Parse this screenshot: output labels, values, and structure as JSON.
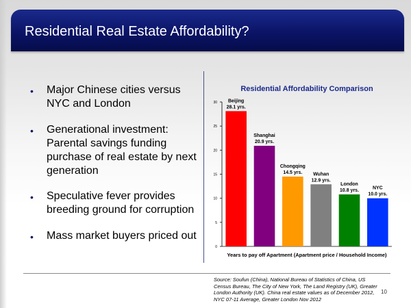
{
  "slide": {
    "title": "Residential Real Estate Affordability?",
    "bullets": [
      "Major Chinese cities versus NYC and London",
      "Generational investment: Parental savings funding purchase of real estate by next generation",
      "Speculative fever provides breeding ground for corruption",
      "Mass market buyers priced out"
    ],
    "bullet_glyph": "•",
    "source": "Source: Soufun (China), National Bureau of Statistics of China, US Census Bureau, The City of New York, The Land Registry (UK), Greater London Authority (UK). China real estate values as of December 2012, NYC 07-11 Average, Greater London Nov 2012",
    "page_number": "10"
  },
  "colors": {
    "header_navy": "#0b1466",
    "chart_title": "#1a2a8c"
  },
  "chart_data": {
    "type": "bar",
    "title": "Residential Affordability Comparison",
    "xlabel": "Years to pay off Apartment  (Apartment price / Household Income)",
    "ylabel": "",
    "ylim": [
      0,
      30
    ],
    "yticks": [
      0,
      5,
      10,
      15,
      20,
      25,
      30
    ],
    "grid": false,
    "categories": [
      "Beijing",
      "Shanghai",
      "Chongqing",
      "Wuhan",
      "London",
      "NYC"
    ],
    "values": [
      28.1,
      20.9,
      14.5,
      12.9,
      10.8,
      10.0
    ],
    "data_labels": [
      "28.1 yrs.",
      "20.9 yrs.",
      "14.5 yrs.",
      "12.9 yrs.",
      "10.8 yrs.",
      "10.0 yrs."
    ],
    "bar_colors": [
      "#ff0000",
      "#800080",
      "#ff9900",
      "#808080",
      "#008000",
      "#0033ff"
    ]
  }
}
